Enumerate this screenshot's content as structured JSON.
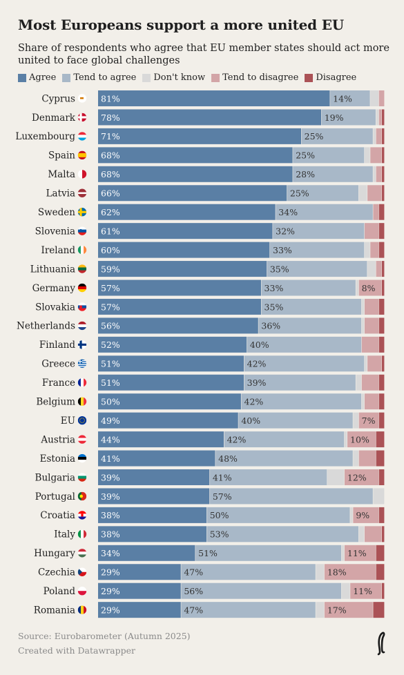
{
  "title": "Most Europeans support a more united EU",
  "subtitle": "Share of respondents who agree that EU member states should act more united to face global challenges",
  "footer": {
    "source": "Source: Eurobarometer (Autumn 2025)",
    "credit": "Created with Datawrapper"
  },
  "icons": {
    "logo": "publisher-logo-icon"
  },
  "colors": {
    "Agree": "#5a7fa5",
    "Tend to agree": "#a8b8c8",
    "Don't know": "#d9d9d9",
    "Tend to disagree": "#d3a5a7",
    "Disagree": "#ab5256"
  },
  "chart_data": {
    "type": "bar",
    "orientation": "horizontal",
    "stacked": true,
    "normalized": true,
    "xlim": [
      0,
      100
    ],
    "legend_position": "top",
    "categories": [
      "Cyprus",
      "Denmark",
      "Luxembourg",
      "Spain",
      "Malta",
      "Latvia",
      "Sweden",
      "Slovenia",
      "Ireland",
      "Lithuania",
      "Germany",
      "Slovakia",
      "Netherlands",
      "Finland",
      "Greece",
      "France",
      "Belgium",
      "EU",
      "Austria",
      "Estonia",
      "Bulgaria",
      "Portugal",
      "Croatia",
      "Italy",
      "Hungary",
      "Czechia",
      "Poland",
      "Romania"
    ],
    "series": [
      {
        "name": "Agree",
        "values": [
          81,
          78,
          71,
          68,
          68,
          66,
          62,
          61,
          60,
          59,
          57,
          57,
          56,
          52,
          51,
          51,
          50,
          49,
          44,
          41,
          39,
          39,
          38,
          38,
          34,
          29,
          29,
          29
        ]
      },
      {
        "name": "Tend to agree",
        "values": [
          14,
          19,
          25,
          25,
          28,
          25,
          34,
          32,
          33,
          35,
          33,
          35,
          36,
          40,
          42,
          39,
          42,
          40,
          42,
          48,
          41,
          57,
          50,
          53,
          51,
          47,
          56,
          47
        ]
      },
      {
        "name": "Don't know",
        "values": [
          3,
          1,
          1,
          2,
          1,
          3,
          0,
          0,
          2,
          3,
          1,
          1,
          1,
          0,
          1,
          2,
          1,
          2,
          1,
          2,
          6,
          4,
          1,
          2,
          1,
          3,
          3,
          3
        ]
      },
      {
        "name": "Tend to disagree",
        "values": [
          2,
          1,
          2,
          4,
          2,
          5,
          2,
          5,
          3,
          2,
          8,
          5,
          5,
          6,
          5,
          6,
          5,
          7,
          10,
          6,
          12,
          0,
          9,
          6,
          11,
          18,
          11,
          17
        ]
      },
      {
        "name": "Disagree",
        "values": [
          0,
          1,
          1,
          1,
          1,
          1,
          2,
          2,
          2,
          1,
          1,
          2,
          2,
          2,
          1,
          2,
          2,
          2,
          3,
          3,
          2,
          0,
          2,
          1,
          3,
          3,
          1,
          4
        ]
      }
    ],
    "data_labels": {
      "Agree": [
        "81%",
        "78%",
        "71%",
        "68%",
        "68%",
        "66%",
        "62%",
        "61%",
        "60%",
        "59%",
        "57%",
        "57%",
        "56%",
        "52%",
        "51%",
        "51%",
        "50%",
        "49%",
        "44%",
        "41%",
        "39%",
        "39%",
        "38%",
        "38%",
        "34%",
        "29%",
        "29%",
        "29%"
      ],
      "Tend to agree": [
        "14%",
        "19%",
        "25%",
        "25%",
        "28%",
        "25%",
        "34%",
        "32%",
        "33%",
        "35%",
        "33%",
        "35%",
        "36%",
        "40%",
        "42%",
        "39%",
        "42%",
        "40%",
        "42%",
        "48%",
        "41%",
        "57%",
        "50%",
        "53%",
        "51%",
        "47%",
        "56%",
        "47%"
      ],
      "Tend to disagree": [
        "",
        "",
        "",
        "",
        "",
        "",
        "",
        "",
        "",
        "",
        "8%",
        "",
        "",
        "",
        "",
        "",
        "",
        "7%",
        "10%",
        "",
        "12%",
        "",
        "9%",
        "",
        "11%",
        "18%",
        "11%",
        "17%"
      ]
    },
    "flag_icons": [
      "cyprus-flag-icon",
      "denmark-flag-icon",
      "luxembourg-flag-icon",
      "spain-flag-icon",
      "malta-flag-icon",
      "latvia-flag-icon",
      "sweden-flag-icon",
      "slovenia-flag-icon",
      "ireland-flag-icon",
      "lithuania-flag-icon",
      "germany-flag-icon",
      "slovakia-flag-icon",
      "netherlands-flag-icon",
      "finland-flag-icon",
      "greece-flag-icon",
      "france-flag-icon",
      "belgium-flag-icon",
      "eu-flag-icon",
      "austria-flag-icon",
      "estonia-flag-icon",
      "bulgaria-flag-icon",
      "portugal-flag-icon",
      "croatia-flag-icon",
      "italy-flag-icon",
      "hungary-flag-icon",
      "czechia-flag-icon",
      "poland-flag-icon",
      "romania-flag-icon"
    ]
  }
}
